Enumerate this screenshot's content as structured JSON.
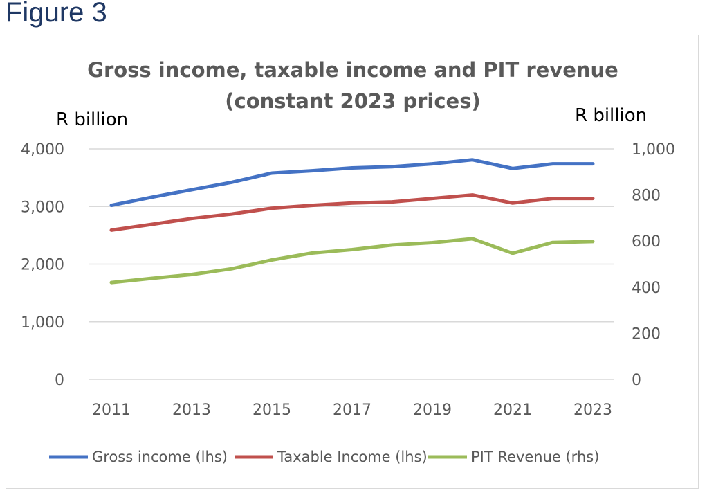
{
  "figure_label": "Figure 3",
  "chart_data": {
    "type": "line",
    "title": [
      "Gross income, taxable income and PIT revenue",
      "(constant 2023 prices)"
    ],
    "ylabel_left": "R billion",
    "ylabel_right": "R billion",
    "x": [
      2011,
      2012,
      2013,
      2014,
      2015,
      2016,
      2017,
      2018,
      2019,
      2020,
      2021,
      2022,
      2023
    ],
    "x_tick_labels": [
      "2011",
      "2013",
      "2015",
      "2017",
      "2019",
      "2021",
      "2023"
    ],
    "y_left_ticks": [
      "0",
      "1,000",
      "2,000",
      "3,000",
      "4,000"
    ],
    "y_right_ticks": [
      "0",
      "200",
      "400",
      "600",
      "800",
      "1,000"
    ],
    "ylim_left": [
      0,
      4000
    ],
    "ylim_right": [
      0,
      1000
    ],
    "grid": true,
    "legend_position": "bottom",
    "series": [
      {
        "name": "Gross income (lhs)",
        "axis": "left",
        "color": "#4472c4",
        "values": [
          3020,
          3160,
          3290,
          3420,
          3580,
          3620,
          3670,
          3690,
          3740,
          3810,
          3660,
          3740,
          3740
        ]
      },
      {
        "name": "Taxable Income (lhs)",
        "axis": "left",
        "color": "#c0504d",
        "values": [
          2590,
          2690,
          2790,
          2870,
          2970,
          3020,
          3060,
          3080,
          3140,
          3200,
          3060,
          3140,
          3140
        ]
      },
      {
        "name": "PIT Revenue (rhs)",
        "axis": "right",
        "color": "#9bbb59",
        "values": [
          420,
          438,
          455,
          480,
          518,
          548,
          563,
          583,
          593,
          610,
          547,
          594,
          598
        ]
      }
    ]
  }
}
